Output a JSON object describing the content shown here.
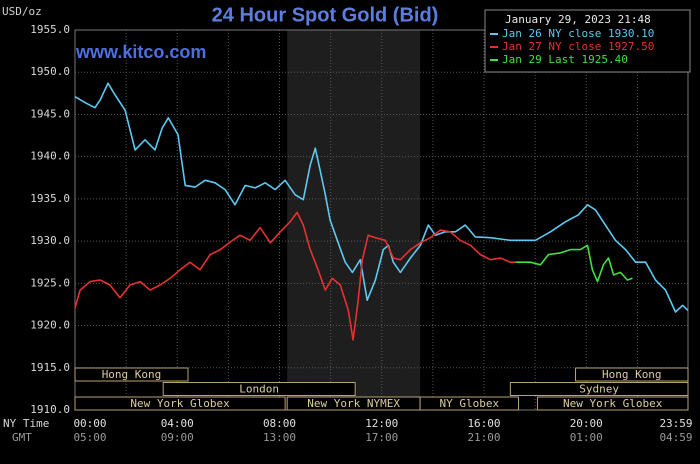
{
  "chart_data": {
    "type": "line",
    "title": "24 Hour Spot Gold (Bid)",
    "y_unit_label": "USD/oz",
    "watermark": "www.kitco.com",
    "timestamp": "January 29, 2023 21:48",
    "legend": "upper right",
    "grid": true,
    "background": "#000000",
    "xlim": [
      0,
      23.98
    ],
    "ylim": [
      1910,
      1955
    ],
    "yticks": [
      {
        "value": 1910,
        "label": "1910.0"
      },
      {
        "value": 1915,
        "label": "1915.0"
      },
      {
        "value": 1920,
        "label": "1920.0"
      },
      {
        "value": 1925,
        "label": "1925.0"
      },
      {
        "value": 1930,
        "label": "1930.0"
      },
      {
        "value": 1935,
        "label": "1935.0"
      },
      {
        "value": 1940,
        "label": "1940.0"
      },
      {
        "value": 1945,
        "label": "1945.0"
      },
      {
        "value": 1950,
        "label": "1950.0"
      },
      {
        "value": 1955,
        "label": "1955.0"
      }
    ],
    "xticks": [
      {
        "value": 0,
        "label": "00:00"
      },
      {
        "value": 4,
        "label": "04:00"
      },
      {
        "value": 8,
        "label": "08:00"
      },
      {
        "value": 12,
        "label": "12:00"
      },
      {
        "value": 16,
        "label": "16:00"
      },
      {
        "value": 20,
        "label": "20:00"
      },
      {
        "value": 23.98,
        "label": "23:59"
      }
    ],
    "xticks_gmt": [
      "05:00",
      "09:00",
      "13:00",
      "17:00",
      "21:00",
      "01:00",
      "04:59"
    ],
    "x_minor_ticks": [
      2,
      6,
      10,
      14,
      18,
      22
    ],
    "x_row_labels": [
      "NY Time",
      "GMT"
    ],
    "shaded_span": [
      8.3,
      13.5
    ],
    "session_rows": [
      [
        {
          "label": "Hong Kong",
          "start": 0,
          "end": 4.42
        },
        {
          "label": "Hong Kong",
          "start": 19.58,
          "end": 23.98
        }
      ],
      [
        {
          "label": "London",
          "start": 3.45,
          "end": 10.96
        },
        {
          "label": "Sydney",
          "start": 17.03,
          "end": 23.98
        }
      ],
      [
        {
          "label": "New York Globex",
          "start": 0,
          "end": 8.22
        },
        {
          "label": "New York NYMEX",
          "start": 8.3,
          "end": 13.5
        },
        {
          "label": "NY Globex",
          "start": 13.5,
          "end": 17.35
        },
        {
          "label": "New York Globex",
          "start": 18.09,
          "end": 23.98
        }
      ]
    ],
    "series": [
      {
        "name": "Jan 26 NY close 1930.10",
        "color": "#5fc8f0",
        "x": [
          0,
          0.39,
          0.78,
          0.98,
          1.29,
          1.57,
          1.96,
          2.35,
          2.74,
          3.13,
          3.41,
          3.65,
          4.03,
          4.31,
          4.7,
          5.09,
          5.48,
          5.87,
          6.26,
          6.66,
          7.05,
          7.44,
          7.83,
          8.22,
          8.61,
          8.93,
          9.2,
          9.4,
          9.59,
          9.79,
          9.98,
          10.26,
          10.57,
          10.85,
          11.16,
          11.43,
          11.75,
          12.06,
          12.26,
          12.45,
          12.73,
          13.12,
          13.51,
          13.82,
          14.1,
          14.49,
          14.88,
          15.27,
          15.66,
          16.25,
          17.03,
          18.01,
          18.6,
          19.19,
          19.69,
          20.05,
          20.36,
          20.75,
          21.14,
          21.54,
          21.93,
          22.32,
          22.71,
          23.1,
          23.49,
          23.77,
          23.98
        ],
        "values": [
          1947.1,
          1946.4,
          1945.8,
          1946.7,
          1948.7,
          1947.3,
          1945.5,
          1940.8,
          1942.0,
          1940.8,
          1943.4,
          1944.6,
          1942.6,
          1936.6,
          1936.4,
          1937.2,
          1936.9,
          1936.1,
          1934.3,
          1936.6,
          1936.3,
          1936.9,
          1936.1,
          1937.2,
          1935.5,
          1934.9,
          1939.0,
          1941.0,
          1938.4,
          1935.5,
          1932.5,
          1930.1,
          1927.5,
          1926.3,
          1927.8,
          1923.0,
          1925.4,
          1929.0,
          1929.5,
          1927.5,
          1926.3,
          1928.0,
          1929.5,
          1931.9,
          1930.7,
          1931.1,
          1931.1,
          1931.9,
          1930.5,
          1930.4,
          1930.1,
          1930.1,
          1931.1,
          1932.3,
          1933.1,
          1934.3,
          1933.7,
          1931.9,
          1930.1,
          1929.0,
          1927.5,
          1927.5,
          1925.4,
          1924.2,
          1921.6,
          1922.4,
          1921.8
        ]
      },
      {
        "name": "Jan 27 NY close 1927.50",
        "color": "#e83030",
        "x": [
          0,
          0.2,
          0.59,
          0.98,
          1.37,
          1.76,
          2.15,
          2.55,
          2.94,
          3.33,
          3.72,
          4.11,
          4.5,
          4.89,
          5.29,
          5.68,
          6.07,
          6.46,
          6.85,
          7.24,
          7.64,
          8.03,
          8.42,
          8.69,
          8.93,
          9.2,
          9.51,
          9.79,
          10.06,
          10.38,
          10.69,
          10.88,
          11.08,
          11.24,
          11.47,
          11.75,
          12.14,
          12.45,
          12.73,
          13.12,
          13.51,
          13.9,
          14.29,
          14.68,
          15.07,
          15.47,
          15.86,
          16.25,
          16.64,
          17.03,
          17.23
        ],
        "values": [
          1922.1,
          1924.2,
          1925.2,
          1925.4,
          1924.8,
          1923.3,
          1924.8,
          1925.2,
          1924.2,
          1924.8,
          1925.6,
          1926.6,
          1927.5,
          1926.6,
          1928.4,
          1929.0,
          1929.9,
          1930.7,
          1930.1,
          1931.6,
          1929.8,
          1931.1,
          1932.3,
          1933.4,
          1931.9,
          1929.0,
          1926.6,
          1924.2,
          1925.6,
          1924.8,
          1921.8,
          1918.3,
          1923.0,
          1927.8,
          1930.7,
          1930.4,
          1930.1,
          1928.0,
          1927.8,
          1929.0,
          1929.8,
          1930.4,
          1931.3,
          1931.1,
          1930.1,
          1929.5,
          1928.4,
          1927.8,
          1928.0,
          1927.5,
          1927.5
        ]
      },
      {
        "name": "Jan 29 Last 1925.40",
        "color": "#40e040",
        "x": [
          17.23,
          17.82,
          18.21,
          18.52,
          18.99,
          19.38,
          19.77,
          20.05,
          20.24,
          20.44,
          20.67,
          20.87,
          21.07,
          21.34,
          21.61,
          21.81
        ],
        "values": [
          1927.5,
          1927.5,
          1927.2,
          1928.4,
          1928.6,
          1929.0,
          1929.0,
          1929.5,
          1926.6,
          1925.2,
          1927.2,
          1928.0,
          1926.0,
          1926.3,
          1925.4,
          1925.6
        ]
      }
    ]
  }
}
